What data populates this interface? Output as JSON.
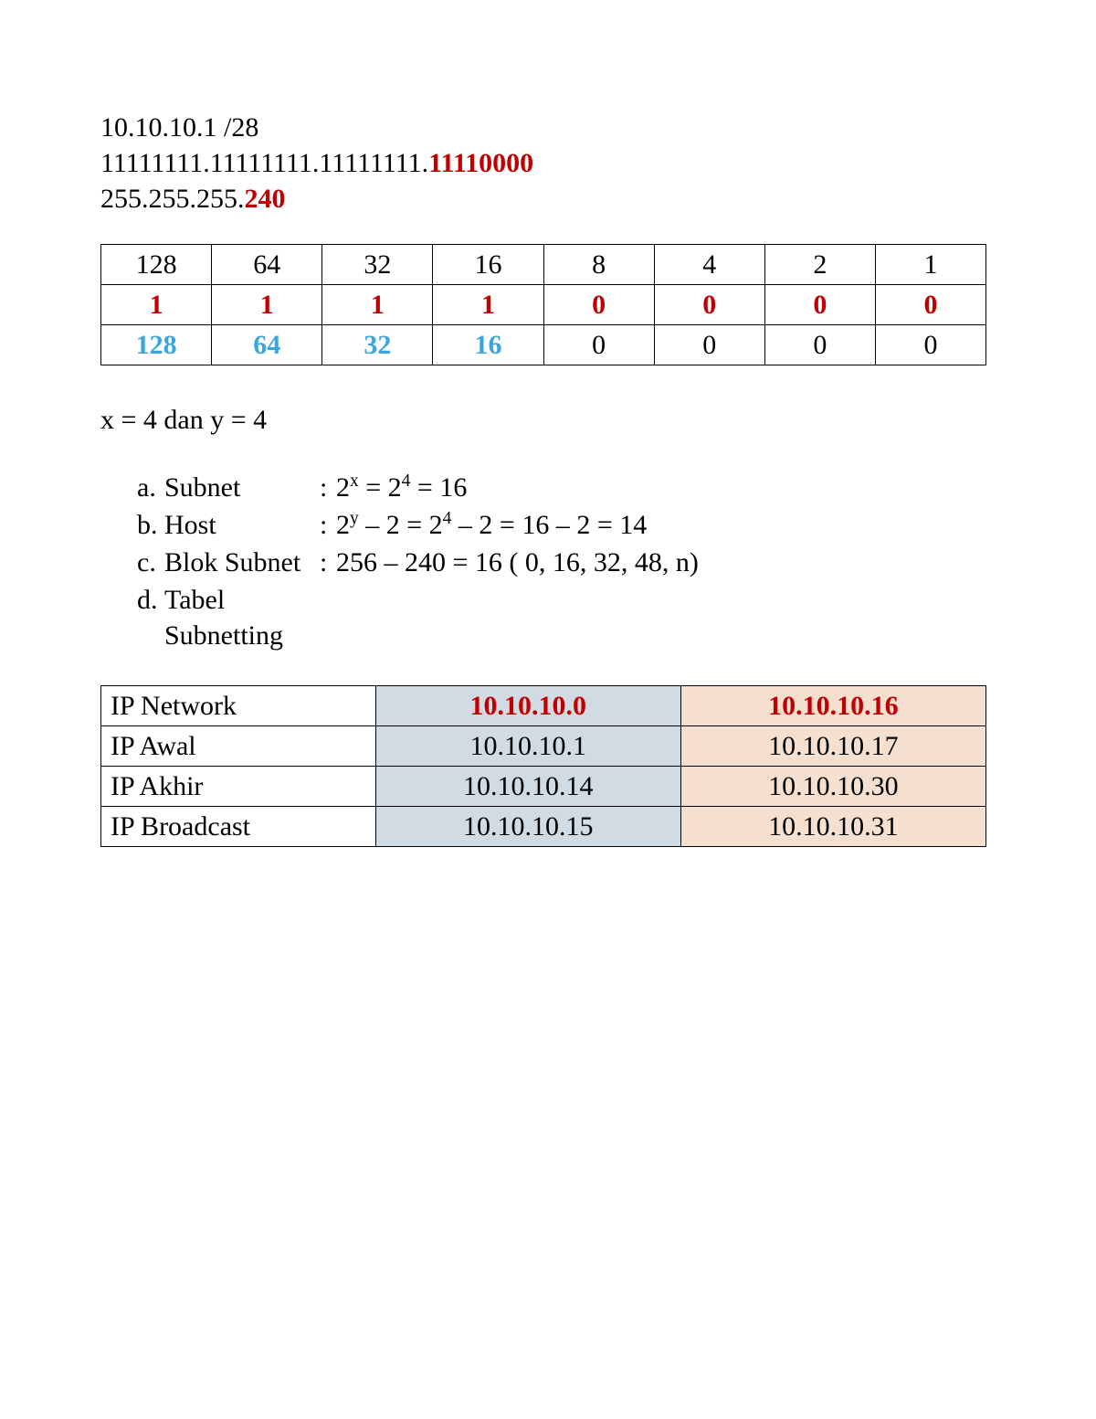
{
  "header": {
    "line1": "10.10.10.1 /28",
    "line2_prefix": "11111111.11111111.11111111.",
    "line2_suffix": "11110000",
    "line3_prefix": "255.255.255.",
    "line3_suffix": "240"
  },
  "binary_table": {
    "row1": [
      "128",
      "64",
      "32",
      "16",
      "8",
      "4",
      "2",
      "1"
    ],
    "row2": [
      "1",
      "1",
      "1",
      "1",
      "0",
      "0",
      "0",
      "0"
    ],
    "row3_blue": [
      "128",
      "64",
      "32",
      "16"
    ],
    "row3_black": [
      "0",
      "0",
      "0",
      "0"
    ],
    "colors": {
      "row1": "#000000",
      "row2": "#c00000",
      "row3_blue": "#3aa6dd",
      "row3_black": "#000000"
    },
    "border_color": "#000000"
  },
  "xy_line": "x = 4 dan y = 4",
  "list": {
    "a": {
      "marker": "a.",
      "label": "Subnet",
      "expr_left": "2",
      "expr_sup1": "x",
      "mid1": " = 2",
      "expr_sup2": "4",
      "mid2": " = 16"
    },
    "b": {
      "marker": "b.",
      "label": "Host",
      "expr_left": "2",
      "expr_sup1": "y",
      "mid1": " – 2 = 2",
      "expr_sup2": "4",
      "mid2": " – 2 = 16 – 2 = 14"
    },
    "c": {
      "marker": "c.",
      "label": "Blok Subnet",
      "text": "256 – 240 = 16 ( 0, 16, 32, 48, n)"
    },
    "d": {
      "marker": "d.",
      "label": "Tabel Subnetting"
    }
  },
  "subnet_table": {
    "columns": {
      "label_width": 300,
      "data_width": 335,
      "bg_col1": "#d1dbe4",
      "bg_col2": "#f5e0d0"
    },
    "rows": [
      {
        "label": "IP Network",
        "c1": "10.10.10.0",
        "c2": "10.10.10.16",
        "header": true
      },
      {
        "label": "IP Awal",
        "c1": "10.10.10.1",
        "c2": "10.10.10.17",
        "header": false
      },
      {
        "label": "IP Akhir",
        "c1": "10.10.10.14",
        "c2": "10.10.10.30",
        "header": false
      },
      {
        "label": "IP Broadcast",
        "c1": "10.10.10.15",
        "c2": "10.10.10.31",
        "header": false
      }
    ],
    "header_color": "#c00000",
    "text_color": "#000000"
  },
  "styling": {
    "font_family": "Times New Roman",
    "base_fontsize": 30,
    "background": "#ffffff"
  }
}
